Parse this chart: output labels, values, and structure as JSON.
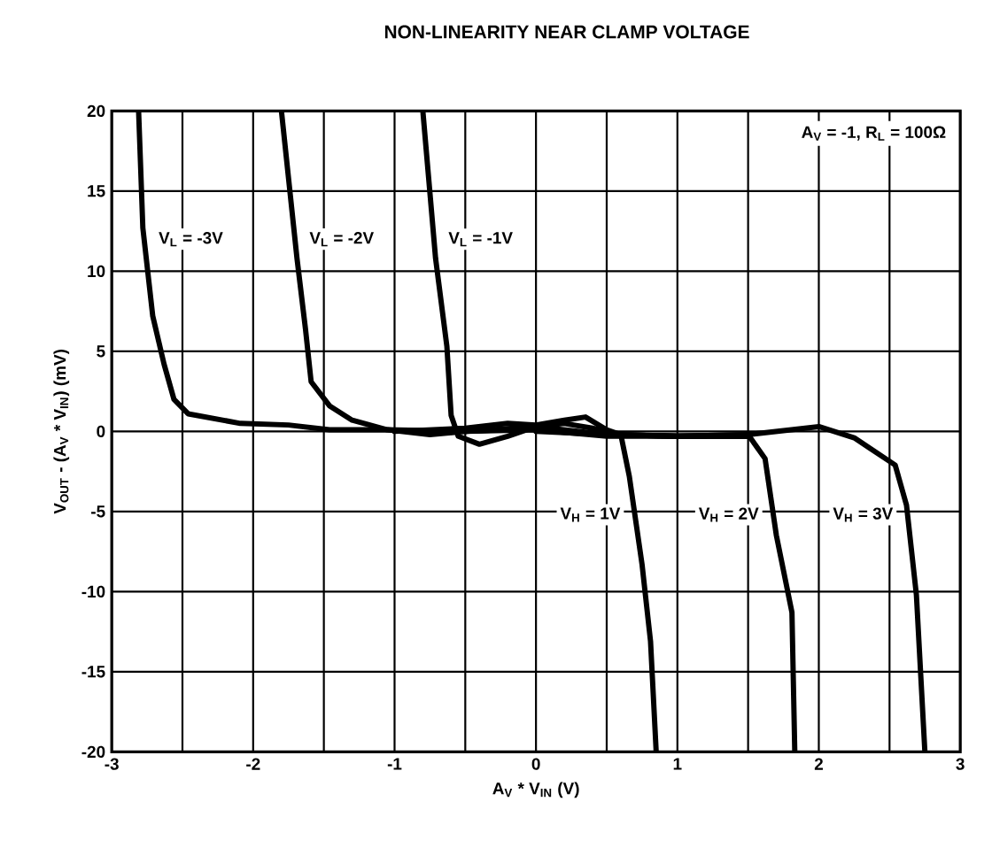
{
  "chart_data": {
    "type": "line",
    "title": "NON-LINEARITY NEAR CLAMP VOLTAGE",
    "xlabel": "A$_{V}$ * V$_{IN}$ (V)",
    "ylabel": "V$_{OUT}$ - (A$_{V}$ * V$_{IN}$) (mV)",
    "xlim": [
      -3,
      3
    ],
    "ylim": [
      -20,
      20
    ],
    "xticks": [
      -3,
      {
        "value": -2.5,
        "label": null
      },
      -2,
      {
        "value": -1.5,
        "label": null
      },
      -1,
      {
        "value": -0.5,
        "label": null
      },
      0,
      {
        "value": 0.5,
        "label": null
      },
      1,
      {
        "value": 1.5,
        "label": null
      },
      2,
      {
        "value": 2.5,
        "label": null
      },
      3
    ],
    "yticks": [
      -20,
      -15,
      -10,
      -5,
      0,
      5,
      10,
      15,
      20
    ],
    "grid": true,
    "marker": "none",
    "line_style": "solid",
    "series": [
      {
        "name": "V$_{L}$ = -3V",
        "color": "#000000",
        "x": [
          -2.81,
          -2.78,
          -2.71,
          -2.63,
          -2.56,
          -2.46,
          -2.09,
          -1.75,
          -1.46,
          -1.05,
          -0.5,
          0,
          0.5,
          1,
          1.5
        ],
        "values": [
          20,
          12.7,
          7.2,
          4.2,
          2.0,
          1.1,
          0.5,
          0.4,
          0.1,
          0.1,
          0,
          0.2,
          -0.2,
          -0.3,
          -0.3
        ]
      },
      {
        "name": "V$_{L}$ = -2V",
        "color": "#000000",
        "x": [
          -1.8,
          -1.69,
          -1.63,
          -1.59,
          -1.46,
          -1.3,
          -1.05,
          -0.75,
          -0.5,
          0,
          0.5,
          1,
          1.5
        ],
        "values": [
          20,
          10.8,
          6.4,
          3.1,
          1.6,
          0.7,
          0.1,
          -0.2,
          0,
          0.3,
          -0.2,
          -0.3,
          -0.3
        ]
      },
      {
        "name": "V$_{L}$ = -1V",
        "color": "#000000",
        "x": [
          -0.8,
          -0.71,
          -0.63,
          -0.6,
          -0.55,
          -0.4,
          -0.2,
          0,
          0.2,
          0.4,
          0.6,
          1,
          1.5
        ],
        "values": [
          20,
          10.8,
          5.3,
          1,
          -0.3,
          -0.8,
          -0.3,
          0.3,
          0.5,
          0.2,
          -0.2,
          -0.3,
          -0.3
        ]
      },
      {
        "name": "V$_{H}$ = 1V",
        "color": "#000000",
        "x": [
          -1,
          -0.5,
          -0.2,
          0,
          0.2,
          0.35,
          0.5,
          0.6,
          0.66,
          0.75,
          0.81,
          0.85
        ],
        "values": [
          0,
          0.2,
          0.5,
          0.4,
          0.7,
          0.9,
          0.1,
          -0.2,
          -2.8,
          -8.3,
          -13.1,
          -20
        ]
      },
      {
        "name": "V$_{H}$ = 2V",
        "color": "#000000",
        "x": [
          -0.5,
          0,
          0.5,
          1,
          1.5,
          1.62,
          1.7,
          1.81,
          1.83
        ],
        "values": [
          0,
          0.1,
          -0.3,
          -0.3,
          -0.2,
          -1.7,
          -6.5,
          -11.3,
          -20
        ]
      },
      {
        "name": "V$_{H}$ = 3V",
        "color": "#000000",
        "x": [
          0,
          0.5,
          1,
          1.5,
          2.0,
          2.25,
          2.54,
          2.62,
          2.69,
          2.75
        ],
        "values": [
          0,
          -0.2,
          -0.3,
          -0.2,
          0.3,
          -0.4,
          -2.1,
          -4.6,
          -10.2,
          -20
        ]
      }
    ],
    "annotations": [
      "A$_{V}$ = -1, R$_{L}$ = 100Ω"
    ]
  }
}
